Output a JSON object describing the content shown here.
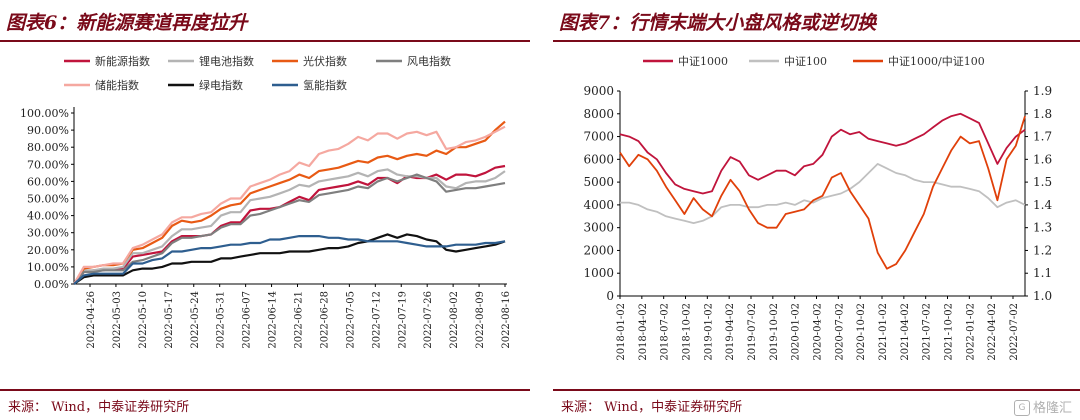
{
  "left_panel": {
    "figure_title": "图表6：新能源赛道再度拉升",
    "source": "来源：  Wind，中泰证券研究所"
  },
  "right_panel": {
    "figure_title": "图表7：行情末端大小盘风格或逆切换",
    "source": "来源：  Wind，中泰证券研究所"
  },
  "watermark": {
    "text": "格隆汇",
    "logo_icon": "gelonghui-logo-icon"
  },
  "chart_data": [
    {
      "type": "line",
      "title": "",
      "xlabel": "",
      "ylabel": "",
      "ylim": [
        0,
        100
      ],
      "y_tick_labels": [
        "0.00%",
        "10.00%",
        "20.00%",
        "30.00%",
        "40.00%",
        "50.00%",
        "60.00%",
        "70.00%",
        "80.00%",
        "90.00%",
        "100.00%"
      ],
      "x_tick_labels": [
        "2022-04-26",
        "2022-05-03",
        "2022-05-10",
        "2022-05-17",
        "2022-05-24",
        "2022-05-31",
        "2022-06-07",
        "2022-06-14",
        "2022-06-21",
        "2022-06-28",
        "2022-07-05",
        "2022-07-12",
        "2022-07-19",
        "2022-07-26",
        "2022-08-02",
        "2022-08-09",
        "2022-08-16"
      ],
      "grid": false,
      "legend_position": "top",
      "series": [
        {
          "name": "新能源指数",
          "color": "#c0143c",
          "width": 2.2,
          "values": [
            0,
            7,
            8,
            8,
            9,
            9,
            16,
            17,
            18,
            19,
            25,
            28,
            28,
            28,
            29,
            34,
            36,
            36,
            43,
            44,
            44,
            45,
            48,
            51,
            49,
            55,
            56,
            57,
            58,
            60,
            58,
            62,
            62,
            59,
            63,
            62,
            62,
            64,
            61,
            64,
            64,
            63,
            65,
            68,
            69
          ]
        },
        {
          "name": "锂电池指数",
          "color": "#b4b4b4",
          "width": 2.2,
          "values": [
            0,
            8,
            8,
            9,
            9,
            10,
            18,
            18,
            20,
            22,
            28,
            32,
            32,
            33,
            34,
            40,
            42,
            42,
            49,
            50,
            51,
            53,
            55,
            58,
            57,
            60,
            61,
            62,
            63,
            65,
            63,
            66,
            67,
            64,
            63,
            63,
            62,
            62,
            57,
            56,
            59,
            60,
            60,
            62,
            66
          ]
        },
        {
          "name": "光伏指数",
          "color": "#e85a14",
          "width": 2.2,
          "values": [
            0,
            9,
            10,
            11,
            11,
            12,
            20,
            21,
            24,
            27,
            34,
            37,
            36,
            37,
            40,
            44,
            46,
            47,
            53,
            55,
            57,
            59,
            61,
            64,
            62,
            66,
            67,
            68,
            70,
            72,
            71,
            74,
            75,
            73,
            75,
            76,
            75,
            78,
            76,
            80,
            80,
            82,
            84,
            90,
            95
          ]
        },
        {
          "name": "风电指数",
          "color": "#7f7f7f",
          "width": 2.2,
          "values": [
            0,
            7,
            7,
            8,
            8,
            8,
            13,
            14,
            16,
            18,
            24,
            27,
            27,
            28,
            29,
            33,
            35,
            35,
            40,
            41,
            43,
            45,
            47,
            49,
            48,
            52,
            53,
            54,
            55,
            57,
            56,
            60,
            62,
            60,
            62,
            64,
            62,
            60,
            54,
            55,
            56,
            56,
            57,
            58,
            59
          ]
        },
        {
          "name": "储能指数",
          "color": "#f5a8a0",
          "width": 2.2,
          "values": [
            0,
            10,
            10,
            11,
            12,
            12,
            21,
            23,
            26,
            29,
            36,
            39,
            39,
            41,
            42,
            47,
            50,
            50,
            57,
            59,
            61,
            64,
            66,
            71,
            69,
            76,
            78,
            79,
            82,
            86,
            84,
            88,
            88,
            85,
            88,
            89,
            87,
            89,
            79,
            80,
            83,
            84,
            86,
            89,
            92
          ]
        },
        {
          "name": "绿电指数",
          "color": "#111111",
          "width": 2.2,
          "values": [
            0,
            4,
            5,
            5,
            5,
            5,
            8,
            9,
            9,
            10,
            12,
            12,
            13,
            13,
            13,
            15,
            15,
            16,
            17,
            18,
            18,
            18,
            19,
            19,
            19,
            20,
            21,
            21,
            22,
            24,
            25,
            27,
            29,
            27,
            29,
            28,
            26,
            25,
            20,
            19,
            20,
            21,
            22,
            23,
            25
          ]
        },
        {
          "name": "氢能指数",
          "color": "#2e5e8f",
          "width": 2.2,
          "values": [
            0,
            5,
            6,
            6,
            6,
            6,
            12,
            12,
            14,
            15,
            19,
            19,
            20,
            21,
            21,
            22,
            23,
            23,
            24,
            24,
            26,
            26,
            27,
            28,
            28,
            28,
            27,
            27,
            26,
            26,
            25,
            25,
            25,
            25,
            24,
            23,
            22,
            22,
            22,
            23,
            23,
            23,
            24,
            24,
            25
          ]
        }
      ]
    },
    {
      "type": "line",
      "title": "",
      "xlabel": "",
      "ylabel": "",
      "ylim_left": [
        0,
        9000
      ],
      "ylim_right": [
        1.0,
        1.9
      ],
      "y_left_tick_labels": [
        "0",
        "1000",
        "2000",
        "3000",
        "4000",
        "5000",
        "6000",
        "7000",
        "8000",
        "9000"
      ],
      "y_right_tick_labels": [
        "1.0",
        "1.1",
        "1.2",
        "1.3",
        "1.4",
        "1.5",
        "1.6",
        "1.7",
        "1.8",
        "1.9"
      ],
      "x_tick_labels": [
        "2018-01-02",
        "2018-04-02",
        "2018-07-02",
        "2018-10-02",
        "2019-01-02",
        "2019-04-02",
        "2019-07-02",
        "2019-10-02",
        "2020-01-02",
        "2020-04-02",
        "2020-07-02",
        "2020-10-02",
        "2021-01-02",
        "2021-04-02",
        "2021-07-02",
        "2021-10-02",
        "2022-01-02",
        "2022-04-02",
        "2022-07-02"
      ],
      "grid": false,
      "legend_position": "top",
      "series": [
        {
          "name": "中证1000",
          "color": "#c0143c",
          "axis": "left",
          "width": 1.8,
          "values": [
            7100,
            7000,
            6800,
            6300,
            6000,
            5400,
            4900,
            4700,
            4600,
            4500,
            4600,
            5500,
            6100,
            5900,
            5300,
            5100,
            5300,
            5500,
            5500,
            5300,
            5700,
            5800,
            6200,
            7000,
            7300,
            7100,
            7200,
            6900,
            6800,
            6700,
            6600,
            6700,
            6900,
            7100,
            7400,
            7700,
            7900,
            8000,
            7800,
            7600,
            6700,
            5800,
            6500,
            7000,
            7300
          ]
        },
        {
          "name": "中证100",
          "color": "#c0c0c0",
          "axis": "left",
          "width": 1.8,
          "values": [
            4100,
            4100,
            4000,
            3800,
            3700,
            3500,
            3400,
            3300,
            3200,
            3300,
            3500,
            3900,
            4000,
            4000,
            3900,
            3900,
            4000,
            4000,
            4100,
            4000,
            4200,
            4100,
            4300,
            4400,
            4500,
            4700,
            5000,
            5400,
            5800,
            5600,
            5400,
            5300,
            5100,
            5000,
            5000,
            4900,
            4800,
            4800,
            4700,
            4600,
            4300,
            3900,
            4100,
            4200,
            4000
          ]
        },
        {
          "name": "中证1000/中证100",
          "color": "#e0400a",
          "axis": "right",
          "width": 1.8,
          "values": [
            1.63,
            1.57,
            1.62,
            1.6,
            1.55,
            1.48,
            1.42,
            1.36,
            1.43,
            1.38,
            1.35,
            1.44,
            1.51,
            1.46,
            1.38,
            1.32,
            1.3,
            1.3,
            1.36,
            1.37,
            1.38,
            1.42,
            1.44,
            1.52,
            1.54,
            1.46,
            1.4,
            1.34,
            1.19,
            1.12,
            1.14,
            1.2,
            1.28,
            1.36,
            1.48,
            1.56,
            1.64,
            1.7,
            1.67,
            1.68,
            1.56,
            1.42,
            1.6,
            1.66,
            1.79
          ]
        }
      ]
    }
  ]
}
